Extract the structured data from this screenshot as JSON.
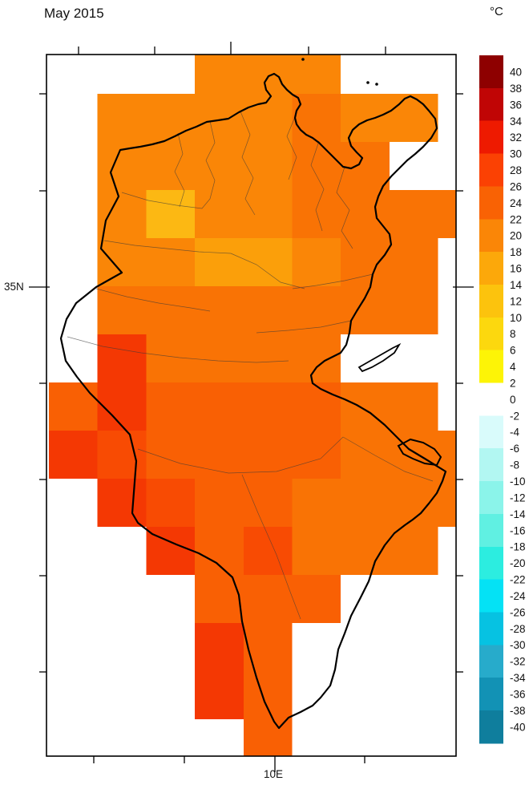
{
  "header": {
    "title": "May 2015",
    "units": "°C"
  },
  "axes": {
    "y_major_label": "35N",
    "x_major_label": "10E"
  },
  "colorbar": {
    "labels": [
      "40",
      "38",
      "36",
      "34",
      "32",
      "30",
      "28",
      "26",
      "24",
      "22",
      "20",
      "18",
      "16",
      "14",
      "12",
      "10",
      "8",
      "6",
      "4",
      "2",
      "0",
      "-2",
      "-4",
      "-6",
      "-8",
      "-10",
      "-12",
      "-14",
      "-16",
      "-18",
      "-20",
      "-22",
      "-24",
      "-26",
      "-28",
      "-30",
      "-32",
      "-34",
      "-36",
      "-38",
      "-40"
    ],
    "colors": [
      "#8E0000",
      "#C00505",
      "#EE1A00",
      "#FB4103",
      "#F96204",
      "#FA8607",
      "#FCA80A",
      "#FCC30D",
      "#FCD80E",
      "#FDF406",
      "#FFFFFF",
      "#D9FBFB",
      "#B2F7F2",
      "#8BF4EA",
      "#60F0E2",
      "#2CEDE0",
      "#04E2F5",
      "#06C2E2",
      "#27ABCB",
      "#1292B5",
      "#0F7E9D"
    ],
    "block_span_degrees": 4,
    "label_step_degrees": 2
  },
  "chart_data": {
    "type": "heatmap",
    "title": "May 2015",
    "units": "°C",
    "region": "Tunisia",
    "xlabel_ticks_visible": [
      "10E"
    ],
    "ylabel_ticks_visible": [
      "35N"
    ],
    "legend_position": "right",
    "grid_cell_size_degrees": 0.5,
    "palette": {
      "M": {
        "hex": "#FA8607",
        "temp_c": "18-22"
      },
      "L": {
        "hex": "#FB9F0A",
        "temp_c": "14-18"
      },
      "A": {
        "hex": "#FCB813",
        "temp_c": "10-14"
      },
      "D": {
        "hex": "#F97305",
        "temp_c": "22-26"
      },
      "E": {
        "hex": "#F96004",
        "temp_c": "22-26"
      },
      "O": {
        "hex": "#F84B03",
        "temp_c": "26-30"
      },
      "R": {
        "hex": "#F43803",
        "temp_c": "26-30"
      }
    },
    "grid": [
      [
        "",
        "",
        "",
        "M",
        "M",
        "M",
        "",
        "",
        ""
      ],
      [
        "",
        "M",
        "M",
        "M",
        "M",
        "D",
        "M",
        "M",
        ""
      ],
      [
        "",
        "M",
        "M",
        "M",
        "M",
        "D",
        "D",
        "",
        ""
      ],
      [
        "",
        "M",
        "A",
        "M",
        "M",
        "D",
        "D",
        "D",
        "D"
      ],
      [
        "",
        "M",
        "M",
        "L",
        "L",
        "M",
        "D",
        "D",
        ""
      ],
      [
        "",
        "D",
        "D",
        "D",
        "D",
        "D",
        "D",
        "D",
        ""
      ],
      [
        "",
        "R",
        "D",
        "D",
        "D",
        "D",
        "",
        "",
        ""
      ],
      [
        "E",
        "R",
        "E",
        "E",
        "E",
        "E",
        "D",
        "D",
        ""
      ],
      [
        "R",
        "O",
        "E",
        "E",
        "E",
        "E",
        "D",
        "D",
        "D"
      ],
      [
        "",
        "R",
        "O",
        "E",
        "E",
        "D",
        "D",
        "D",
        "D"
      ],
      [
        "",
        "",
        "R",
        "E",
        "O",
        "D",
        "D",
        "D",
        ""
      ],
      [
        "",
        "",
        "",
        "E",
        "E",
        "E",
        "",
        "",
        ""
      ],
      [
        "",
        "",
        "",
        "R",
        "E",
        "",
        "",
        "",
        ""
      ],
      [
        "",
        "",
        "",
        "R",
        "E",
        "",
        "",
        "",
        ""
      ],
      [
        "",
        "",
        "",
        "",
        "E",
        "",
        "",
        "",
        ""
      ]
    ]
  }
}
